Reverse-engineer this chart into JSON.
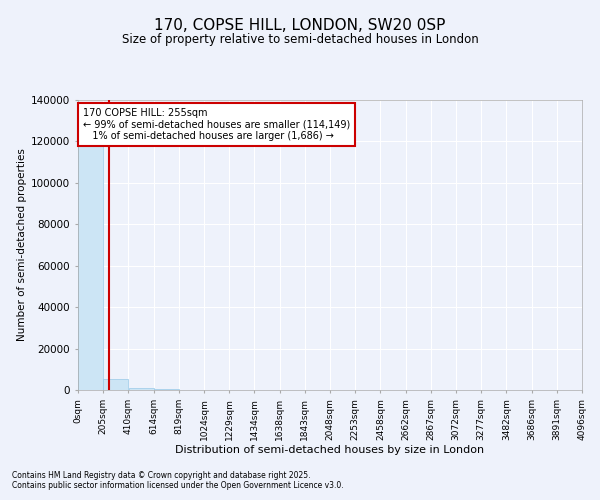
{
  "title": "170, COPSE HILL, LONDON, SW20 0SP",
  "subtitle": "Size of property relative to semi-detached houses in London",
  "xlabel": "Distribution of semi-detached houses by size in London",
  "ylabel": "Number of semi-detached properties",
  "property_size": 255,
  "annotation_line1": "170 COPSE HILL: 255sqm",
  "annotation_line2": "← 99% of semi-detached houses are smaller (114,149)",
  "annotation_line3": "   1% of semi-detached houses are larger (1,686) →",
  "bar_color": "#cce5f5",
  "bar_edgecolor": "#99c9e8",
  "line_color": "#cc0000",
  "annotation_boxcolor": "white",
  "annotation_edgecolor": "#cc0000",
  "bg_color": "#eef2fb",
  "grid_color": "white",
  "footer_line1": "Contains HM Land Registry data © Crown copyright and database right 2025.",
  "footer_line2": "Contains public sector information licensed under the Open Government Licence v3.0.",
  "ylim": [
    0,
    140000
  ],
  "xlim": [
    0,
    4096
  ],
  "bin_edges": [
    0,
    205,
    410,
    614,
    819,
    1024,
    1229,
    1434,
    1638,
    1843,
    2048,
    2253,
    2458,
    2662,
    2867,
    3072,
    3277,
    3482,
    3686,
    3891,
    4096
  ],
  "bar_heights": [
    130000,
    5200,
    800,
    250,
    120,
    70,
    40,
    25,
    15,
    10,
    8,
    6,
    4,
    3,
    3,
    2,
    2,
    1,
    1,
    1
  ],
  "yticks": [
    0,
    20000,
    40000,
    60000,
    80000,
    100000,
    120000,
    140000
  ]
}
